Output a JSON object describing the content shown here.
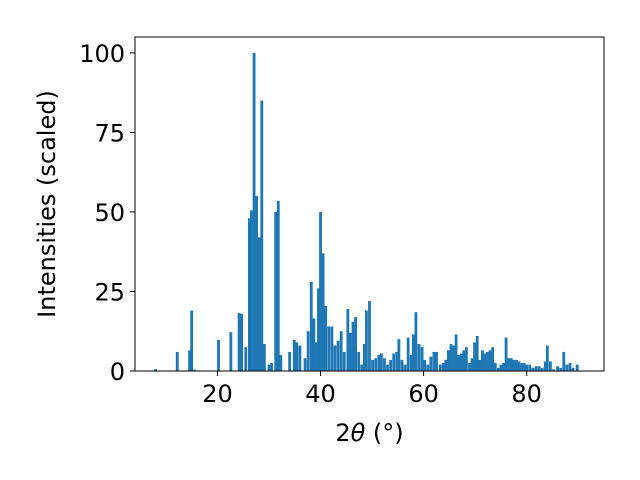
{
  "chart_data": {
    "type": "bar",
    "xlabel_pre": "2",
    "xlabel_theta": "θ",
    "xlabel_unit": " (°)",
    "ylabel": "Intensities (scaled)",
    "xlim": [
      4,
      95
    ],
    "ylim": [
      0,
      105
    ],
    "grid": false,
    "bar_color": "#1f77b4",
    "xticks": [
      20,
      40,
      60,
      80
    ],
    "yticks": [
      0,
      25,
      50,
      75,
      100
    ],
    "bar_width": 0.55,
    "bars": [
      [
        8.0,
        0.6
      ],
      [
        12.2,
        6.0
      ],
      [
        14.6,
        6.5
      ],
      [
        15.0,
        19.0
      ],
      [
        15.6,
        0.4
      ],
      [
        20.2,
        9.8
      ],
      [
        22.6,
        12.2
      ],
      [
        24.2,
        18.2
      ],
      [
        24.7,
        18.0
      ],
      [
        25.5,
        7.5
      ],
      [
        26.2,
        48.0
      ],
      [
        26.6,
        50.5
      ],
      [
        27.1,
        100.0
      ],
      [
        27.6,
        55.0
      ],
      [
        28.1,
        42.0
      ],
      [
        28.6,
        85.0
      ],
      [
        29.1,
        8.5
      ],
      [
        30.0,
        2.0
      ],
      [
        30.5,
        2.5
      ],
      [
        31.3,
        50.0
      ],
      [
        31.8,
        53.5
      ],
      [
        32.3,
        5.0
      ],
      [
        34.0,
        6.0
      ],
      [
        34.9,
        9.8
      ],
      [
        35.4,
        9.0
      ],
      [
        36.0,
        8.0
      ],
      [
        37.0,
        4.0
      ],
      [
        37.6,
        12.5
      ],
      [
        38.2,
        28.0
      ],
      [
        38.7,
        16.5
      ],
      [
        39.2,
        9.0
      ],
      [
        39.6,
        26.0
      ],
      [
        40.0,
        50.0
      ],
      [
        40.5,
        37.0
      ],
      [
        41.0,
        20.5
      ],
      [
        41.6,
        14.0
      ],
      [
        42.2,
        14.0
      ],
      [
        42.8,
        8.0
      ],
      [
        43.4,
        9.5
      ],
      [
        44.0,
        12.5
      ],
      [
        44.6,
        6.0
      ],
      [
        45.3,
        19.5
      ],
      [
        45.8,
        12.0
      ],
      [
        46.3,
        15.5
      ],
      [
        46.8,
        17.0
      ],
      [
        47.4,
        6.0
      ],
      [
        48.0,
        2.0
      ],
      [
        48.5,
        8.5
      ],
      [
        48.9,
        19.0
      ],
      [
        49.5,
        22.0
      ],
      [
        50.1,
        3.5
      ],
      [
        50.7,
        4.0
      ],
      [
        51.3,
        5.0
      ],
      [
        51.8,
        5.5
      ],
      [
        52.4,
        4.0
      ],
      [
        53.0,
        2.0
      ],
      [
        53.6,
        3.5
      ],
      [
        54.2,
        5.5
      ],
      [
        54.8,
        6.0
      ],
      [
        55.2,
        10.0
      ],
      [
        55.8,
        3.5
      ],
      [
        56.4,
        2.0
      ],
      [
        57.0,
        10.5
      ],
      [
        57.6,
        5.0
      ],
      [
        58.0,
        11.5
      ],
      [
        58.5,
        18.5
      ],
      [
        59.1,
        8.5
      ],
      [
        59.7,
        7.5
      ],
      [
        60.2,
        3.5
      ],
      [
        60.8,
        2.0
      ],
      [
        61.4,
        4.5
      ],
      [
        62.0,
        6.0
      ],
      [
        62.5,
        6.0
      ],
      [
        63.2,
        2.0
      ],
      [
        63.8,
        2.5
      ],
      [
        64.3,
        3.5
      ],
      [
        64.8,
        6.5
      ],
      [
        65.3,
        8.5
      ],
      [
        65.8,
        8.0
      ],
      [
        66.3,
        11.5
      ],
      [
        66.8,
        5.0
      ],
      [
        67.3,
        5.5
      ],
      [
        67.8,
        6.5
      ],
      [
        68.3,
        7.5
      ],
      [
        68.9,
        2.5
      ],
      [
        69.4,
        4.0
      ],
      [
        69.9,
        9.0
      ],
      [
        70.4,
        11.0
      ],
      [
        70.9,
        3.5
      ],
      [
        71.4,
        6.5
      ],
      [
        71.9,
        5.5
      ],
      [
        72.4,
        6.0
      ],
      [
        72.9,
        6.5
      ],
      [
        73.4,
        7.5
      ],
      [
        73.9,
        2.5
      ],
      [
        74.5,
        1.0
      ],
      [
        75.0,
        2.0
      ],
      [
        75.5,
        2.5
      ],
      [
        76.0,
        10.5
      ],
      [
        76.5,
        4.0
      ],
      [
        77.0,
        4.0
      ],
      [
        77.5,
        3.5
      ],
      [
        78.0,
        3.5
      ],
      [
        78.5,
        3.0
      ],
      [
        79.0,
        2.5
      ],
      [
        79.5,
        2.5
      ],
      [
        80.0,
        2.0
      ],
      [
        80.6,
        2.0
      ],
      [
        81.2,
        1.0
      ],
      [
        81.8,
        1.5
      ],
      [
        82.4,
        1.5
      ],
      [
        83.0,
        1.0
      ],
      [
        83.6,
        3.0
      ],
      [
        84.0,
        8.0
      ],
      [
        84.6,
        3.0
      ],
      [
        85.2,
        0.5
      ],
      [
        86.0,
        1.5
      ],
      [
        86.6,
        1.0
      ],
      [
        87.2,
        6.0
      ],
      [
        87.8,
        2.0
      ],
      [
        88.4,
        2.5
      ],
      [
        89.0,
        1.0
      ],
      [
        89.8,
        2.0
      ]
    ]
  }
}
